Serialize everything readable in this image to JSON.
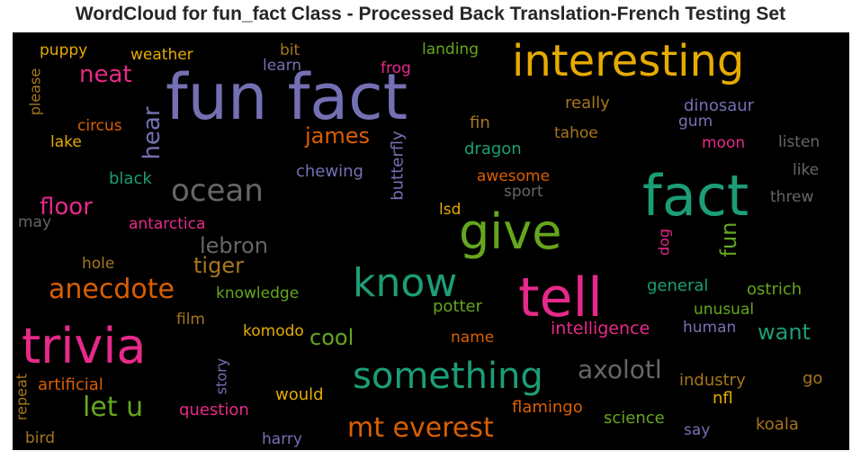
{
  "chart_data": {
    "type": "wordcloud",
    "title": "WordCloud for fun_fact Class - Processed Back Translation-French Testing Set",
    "background": "#000000",
    "palette": {
      "purple": "#7570b3",
      "orange": "#e6ab02",
      "green": "#1b9e77",
      "pink": "#e7298a",
      "lime": "#66a61e",
      "rust": "#d95f02",
      "gray": "#666666",
      "bronze": "#a6761d"
    },
    "words": [
      {
        "text": "fun fact",
        "color": "purple"
      },
      {
        "text": "interesting",
        "color": "orange"
      },
      {
        "text": "fact",
        "color": "green"
      },
      {
        "text": "tell",
        "color": "pink"
      },
      {
        "text": "trivia",
        "color": "pink"
      },
      {
        "text": "give",
        "color": "lime"
      },
      {
        "text": "know",
        "color": "green"
      },
      {
        "text": "something",
        "color": "green"
      },
      {
        "text": "ocean",
        "color": "gray"
      },
      {
        "text": "mt everest",
        "color": "rust"
      },
      {
        "text": "anecdote",
        "color": "rust"
      },
      {
        "text": "axolotl",
        "color": "gray"
      },
      {
        "text": "let u",
        "color": "lime"
      },
      {
        "text": "lebron",
        "color": "gray"
      },
      {
        "text": "james",
        "color": "rust"
      },
      {
        "text": "neat",
        "color": "pink"
      },
      {
        "text": "floor",
        "color": "pink"
      },
      {
        "text": "tiger",
        "color": "bronze"
      },
      {
        "text": "cool",
        "color": "lime"
      },
      {
        "text": "want",
        "color": "green"
      },
      {
        "text": "hear",
        "color": "purple"
      },
      {
        "text": "fun",
        "color": "lime"
      },
      {
        "text": "butterfly",
        "color": "purple"
      },
      {
        "text": "chewing",
        "color": "purple"
      },
      {
        "text": "dragon",
        "color": "green"
      },
      {
        "text": "awesome",
        "color": "rust"
      },
      {
        "text": "dinosaur",
        "color": "purple"
      },
      {
        "text": "really",
        "color": "bronze"
      },
      {
        "text": "fin",
        "color": "bronze"
      },
      {
        "text": "tahoe",
        "color": "bronze"
      },
      {
        "text": "gum",
        "color": "purple"
      },
      {
        "text": "moon",
        "color": "pink"
      },
      {
        "text": "listen",
        "color": "gray"
      },
      {
        "text": "like",
        "color": "gray"
      },
      {
        "text": "threw",
        "color": "gray"
      },
      {
        "text": "sport",
        "color": "gray"
      },
      {
        "text": "lsd",
        "color": "orange"
      },
      {
        "text": "dog",
        "color": "pink"
      },
      {
        "text": "general",
        "color": "green"
      },
      {
        "text": "ostrich",
        "color": "lime"
      },
      {
        "text": "unusual",
        "color": "lime"
      },
      {
        "text": "potter",
        "color": "lime"
      },
      {
        "text": "intelligence",
        "color": "pink"
      },
      {
        "text": "human",
        "color": "purple"
      },
      {
        "text": "knowledge",
        "color": "lime"
      },
      {
        "text": "komodo",
        "color": "orange"
      },
      {
        "text": "name",
        "color": "rust"
      },
      {
        "text": "film",
        "color": "bronze"
      },
      {
        "text": "hole",
        "color": "bronze"
      },
      {
        "text": "antarctica",
        "color": "pink"
      },
      {
        "text": "black",
        "color": "green"
      },
      {
        "text": "may",
        "color": "gray"
      },
      {
        "text": "lake",
        "color": "orange"
      },
      {
        "text": "circus",
        "color": "rust"
      },
      {
        "text": "please",
        "color": "bronze"
      },
      {
        "text": "puppy",
        "color": "orange"
      },
      {
        "text": "weather",
        "color": "orange"
      },
      {
        "text": "bit",
        "color": "bronze"
      },
      {
        "text": "learn",
        "color": "purple"
      },
      {
        "text": "frog",
        "color": "pink"
      },
      {
        "text": "landing",
        "color": "lime"
      },
      {
        "text": "artificial",
        "color": "rust"
      },
      {
        "text": "repeat",
        "color": "bronze"
      },
      {
        "text": "bird",
        "color": "bronze"
      },
      {
        "text": "story",
        "color": "purple"
      },
      {
        "text": "would",
        "color": "orange"
      },
      {
        "text": "question",
        "color": "pink"
      },
      {
        "text": "harry",
        "color": "purple"
      },
      {
        "text": "flamingo",
        "color": "rust"
      },
      {
        "text": "science",
        "color": "lime"
      },
      {
        "text": "say",
        "color": "purple"
      },
      {
        "text": "industry",
        "color": "bronze"
      },
      {
        "text": "nfl",
        "color": "orange"
      },
      {
        "text": "go",
        "color": "bronze"
      },
      {
        "text": "koala",
        "color": "bronze"
      }
    ]
  }
}
